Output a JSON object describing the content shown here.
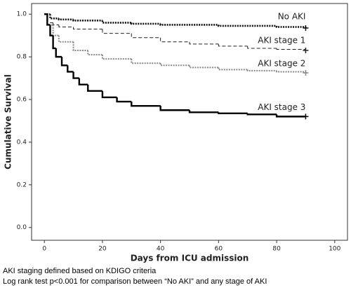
{
  "chart_data": {
    "type": "step",
    "xlabel": "Days from ICU admission",
    "ylabel": "Cumulative Survival",
    "xlim": [
      -4.4,
      104.4
    ],
    "ylim": [
      -0.06,
      1.05
    ],
    "xticks": [
      0,
      20,
      40,
      60,
      80,
      100
    ],
    "yticks": [
      {
        "value": 0,
        "label": "0.0"
      },
      0.2,
      0.4,
      0.6,
      0.8,
      {
        "value": 1,
        "label": "1.0"
      }
    ],
    "series": [
      {
        "name": "No AKI",
        "color": "#111111",
        "line_style": "dotted",
        "width": 2.6,
        "x": [
          0,
          2,
          5,
          10,
          20,
          30,
          40,
          60,
          80,
          90
        ],
        "values": [
          1.0,
          0.98,
          0.975,
          0.97,
          0.96,
          0.955,
          0.95,
          0.945,
          0.94,
          0.935
        ]
      },
      {
        "name": "AKI stage 1",
        "color": "#222222",
        "line_style": "dashed",
        "width": 1,
        "x": [
          0,
          1,
          3,
          5,
          10,
          20,
          30,
          40,
          50,
          60,
          70,
          80,
          90
        ],
        "values": [
          1.0,
          0.96,
          0.95,
          0.94,
          0.93,
          0.91,
          0.89,
          0.87,
          0.86,
          0.85,
          0.84,
          0.835,
          0.83
        ]
      },
      {
        "name": "AKI stage 2",
        "color": "#888888",
        "line_style": "dotted",
        "width": 2,
        "x": [
          0,
          1,
          3,
          5,
          10,
          15,
          20,
          30,
          40,
          50,
          60,
          70,
          80,
          90
        ],
        "values": [
          1.0,
          0.95,
          0.9,
          0.87,
          0.83,
          0.81,
          0.79,
          0.77,
          0.76,
          0.75,
          0.74,
          0.735,
          0.73,
          0.725
        ]
      },
      {
        "name": "AKI stage 3",
        "color": "#000000",
        "line_style": "solid",
        "width": 2.4,
        "x": [
          0,
          1,
          2,
          3,
          4,
          6,
          8,
          10,
          12,
          15,
          20,
          25,
          30,
          40,
          50,
          60,
          70,
          80,
          90
        ],
        "values": [
          1.0,
          0.95,
          0.9,
          0.84,
          0.8,
          0.76,
          0.73,
          0.7,
          0.67,
          0.64,
          0.61,
          0.59,
          0.57,
          0.55,
          0.54,
          0.535,
          0.53,
          0.52,
          0.52
        ]
      }
    ],
    "notes": [
      "AKI staging defined based on KDIGO criteria",
      "Log rank test p<0.001 for comparison between “No AKI” and any stage of AKI"
    ]
  }
}
